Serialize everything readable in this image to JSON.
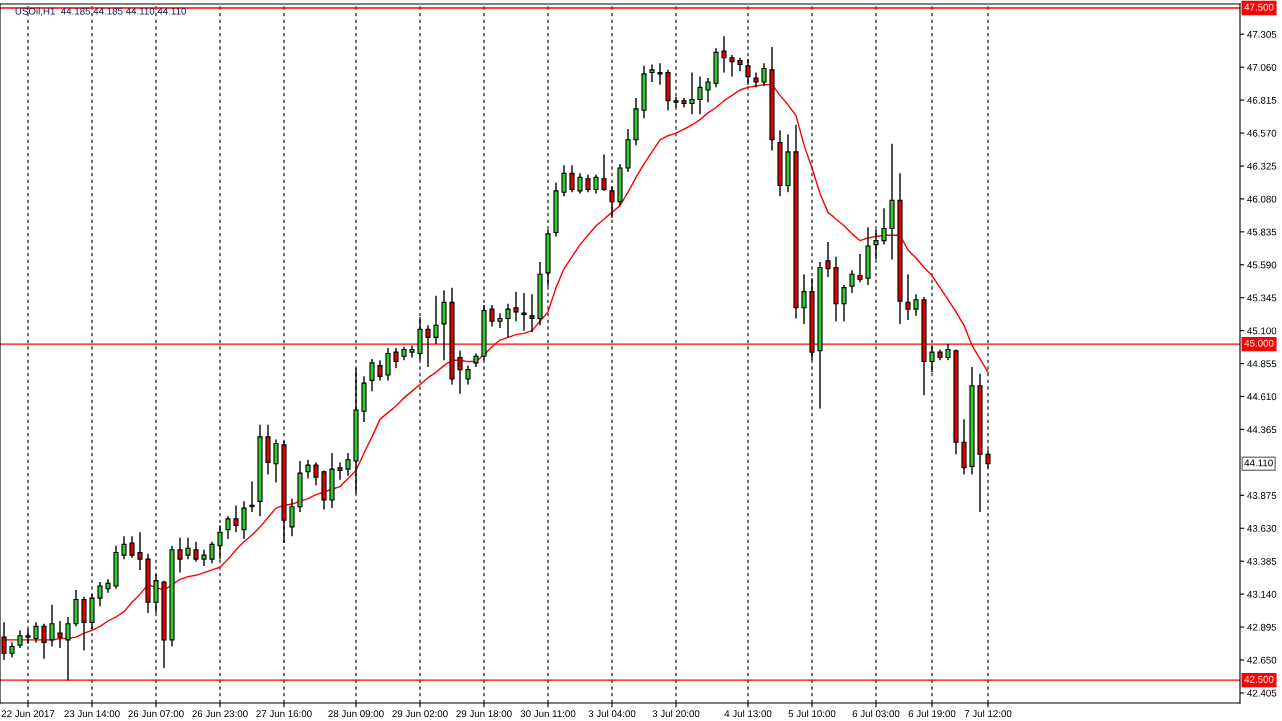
{
  "chart_data": {
    "type": "candlestick",
    "title": "USOil,H1  44.185 44.185 44.110 44.110",
    "categories": [
      null,
      null,
      null,
      "22 Jun 2017",
      null,
      null,
      null,
      null,
      null,
      null,
      null,
      "23 Jun 14:00",
      null,
      null,
      null,
      null,
      null,
      null,
      null,
      "26 Jun 07:00",
      null,
      null,
      null,
      null,
      null,
      null,
      null,
      "26 Jun 23:00",
      null,
      null,
      null,
      null,
      null,
      null,
      null,
      "27 Jun 16:00",
      null,
      null,
      null,
      null,
      null,
      null,
      null,
      null,
      "28 Jun 09:00",
      null,
      null,
      null,
      null,
      null,
      null,
      null,
      "29 Jun 02:00",
      null,
      null,
      null,
      null,
      null,
      null,
      null,
      "29 Jun 18:00",
      null,
      null,
      null,
      null,
      null,
      null,
      null,
      "30 Jun 11:00",
      null,
      null,
      null,
      null,
      null,
      null,
      null,
      "3 Jul 04:00",
      null,
      null,
      null,
      null,
      null,
      null,
      null,
      "3 Jul 20:00",
      null,
      null,
      null,
      null,
      null,
      null,
      null,
      null,
      "4 Jul 13:00",
      null,
      null,
      null,
      null,
      null,
      null,
      null,
      "5 Jul 10:00",
      null,
      null,
      null,
      null,
      null,
      null,
      null,
      "6 Jul 03:00",
      null,
      null,
      null,
      null,
      null,
      null,
      "6 Jul 19:00",
      null,
      null,
      null,
      null,
      null,
      null,
      "7 Jul 12:00"
    ],
    "ohlc": [
      [
        42.82,
        42.93,
        42.65,
        42.7
      ],
      [
        42.7,
        42.78,
        42.67,
        42.75
      ],
      [
        42.76,
        42.87,
        42.74,
        42.83
      ],
      [
        42.83,
        42.88,
        42.77,
        42.82
      ],
      [
        42.81,
        42.93,
        42.78,
        42.9
      ],
      [
        42.9,
        42.92,
        42.66,
        42.78
      ],
      [
        42.8,
        43.06,
        42.75,
        42.92
      ],
      [
        42.85,
        42.94,
        42.74,
        42.82
      ],
      [
        42.8,
        42.97,
        42.5,
        42.92
      ],
      [
        42.92,
        43.17,
        42.9,
        43.1
      ],
      [
        43.1,
        43.12,
        42.72,
        42.93
      ],
      [
        42.93,
        43.14,
        42.88,
        43.11
      ],
      [
        43.11,
        43.23,
        43.05,
        43.2
      ],
      [
        43.18,
        43.25,
        43.15,
        43.22
      ],
      [
        43.2,
        43.5,
        43.18,
        43.45
      ],
      [
        43.43,
        43.57,
        43.4,
        43.51
      ],
      [
        43.52,
        43.57,
        43.41,
        43.43
      ],
      [
        43.45,
        43.6,
        43.32,
        43.4
      ],
      [
        43.4,
        43.44,
        43.0,
        43.08
      ],
      [
        43.08,
        43.29,
        43.0,
        43.24
      ],
      [
        43.23,
        43.24,
        42.59,
        42.8
      ],
      [
        42.8,
        43.5,
        42.75,
        43.47
      ],
      [
        43.47,
        43.56,
        43.3,
        43.4
      ],
      [
        43.43,
        43.56,
        43.4,
        43.48
      ],
      [
        43.47,
        43.53,
        43.38,
        43.4
      ],
      [
        43.4,
        43.47,
        43.35,
        43.43
      ],
      [
        43.4,
        43.53,
        43.37,
        43.51
      ],
      [
        43.5,
        43.65,
        43.4,
        43.6
      ],
      [
        43.62,
        43.72,
        43.55,
        43.7
      ],
      [
        43.7,
        43.8,
        43.6,
        43.65
      ],
      [
        43.62,
        43.83,
        43.55,
        43.78
      ],
      [
        43.79,
        43.98,
        43.75,
        43.8
      ],
      [
        43.83,
        44.4,
        43.72,
        44.31
      ],
      [
        44.31,
        44.4,
        44.03,
        44.12
      ],
      [
        44.11,
        44.29,
        43.97,
        44.26
      ],
      [
        44.25,
        44.28,
        43.52,
        43.69
      ],
      [
        43.64,
        43.85,
        43.57,
        43.79
      ],
      [
        43.79,
        44.13,
        43.75,
        44.04
      ],
      [
        44.05,
        44.14,
        44.0,
        44.1
      ],
      [
        44.1,
        44.12,
        43.95,
        44.01
      ],
      [
        44.05,
        44.06,
        43.77,
        43.84
      ],
      [
        43.84,
        44.19,
        43.78,
        44.07
      ],
      [
        44.08,
        44.12,
        43.99,
        44.06
      ],
      [
        44.07,
        44.19,
        44.02,
        44.14
      ],
      [
        44.13,
        44.82,
        43.89,
        44.51
      ],
      [
        44.5,
        44.76,
        44.42,
        44.71
      ],
      [
        44.73,
        44.89,
        44.65,
        44.86
      ],
      [
        44.84,
        44.88,
        44.73,
        44.76
      ],
      [
        44.77,
        44.97,
        44.73,
        44.93
      ],
      [
        44.94,
        44.97,
        44.82,
        44.87
      ],
      [
        44.91,
        44.98,
        44.88,
        44.96
      ],
      [
        44.94,
        44.99,
        44.9,
        44.96
      ],
      [
        44.93,
        45.2,
        44.88,
        45.11
      ],
      [
        45.11,
        45.14,
        44.83,
        45.05
      ],
      [
        45.05,
        45.36,
        45.0,
        45.14
      ],
      [
        45.15,
        45.4,
        44.88,
        45.31
      ],
      [
        45.31,
        45.42,
        44.7,
        44.74
      ],
      [
        44.9,
        44.95,
        44.63,
        44.81
      ],
      [
        44.74,
        44.84,
        44.7,
        44.81
      ],
      [
        44.86,
        44.93,
        44.83,
        44.91
      ],
      [
        44.91,
        45.29,
        44.88,
        45.25
      ],
      [
        45.26,
        45.29,
        45.13,
        45.17
      ],
      [
        45.17,
        45.23,
        45.12,
        45.19
      ],
      [
        45.19,
        45.3,
        45.05,
        45.26
      ],
      [
        45.27,
        45.39,
        45.17,
        45.24
      ],
      [
        45.23,
        45.38,
        45.1,
        45.22
      ],
      [
        45.21,
        45.37,
        45.09,
        45.19
      ],
      [
        45.19,
        45.61,
        45.14,
        45.52
      ],
      [
        45.53,
        45.85,
        45.43,
        45.82
      ],
      [
        45.83,
        46.2,
        45.8,
        46.14
      ],
      [
        46.13,
        46.33,
        46.1,
        46.27
      ],
      [
        46.27,
        46.33,
        46.13,
        46.15
      ],
      [
        46.14,
        46.27,
        46.12,
        46.24
      ],
      [
        46.23,
        46.26,
        46.13,
        46.15
      ],
      [
        46.15,
        46.26,
        46.12,
        46.24
      ],
      [
        46.23,
        46.41,
        46.14,
        46.15
      ],
      [
        46.14,
        46.17,
        45.94,
        46.06
      ],
      [
        46.06,
        46.34,
        46.03,
        46.31
      ],
      [
        46.31,
        46.6,
        46.28,
        46.52
      ],
      [
        46.52,
        46.83,
        46.48,
        46.75
      ],
      [
        46.74,
        47.07,
        46.68,
        47.01
      ],
      [
        47.02,
        47.08,
        46.95,
        47.04
      ],
      [
        47.02,
        47.09,
        46.93,
        47.01
      ],
      [
        47.02,
        47.04,
        46.74,
        46.81
      ],
      [
        46.8,
        46.84,
        46.76,
        46.81
      ],
      [
        46.81,
        46.83,
        46.76,
        46.79
      ],
      [
        46.79,
        47.02,
        46.71,
        46.82
      ],
      [
        46.82,
        46.99,
        46.71,
        46.91
      ],
      [
        46.89,
        46.98,
        46.8,
        46.95
      ],
      [
        46.94,
        47.2,
        46.91,
        47.17
      ],
      [
        47.18,
        47.29,
        47.02,
        47.13
      ],
      [
        47.13,
        47.15,
        46.99,
        47.1
      ],
      [
        47.11,
        47.13,
        47.03,
        47.08
      ],
      [
        47.07,
        47.12,
        46.93,
        46.99
      ],
      [
        46.98,
        47.02,
        46.91,
        46.95
      ],
      [
        46.95,
        47.09,
        46.92,
        47.05
      ],
      [
        47.04,
        47.21,
        46.44,
        46.52
      ],
      [
        46.5,
        46.59,
        46.1,
        46.18
      ],
      [
        46.18,
        46.56,
        46.13,
        46.43
      ],
      [
        46.43,
        46.63,
        45.19,
        45.27
      ],
      [
        45.27,
        45.52,
        45.15,
        45.39
      ],
      [
        45.39,
        45.49,
        44.88,
        44.94
      ],
      [
        44.95,
        45.61,
        44.52,
        45.57
      ],
      [
        45.62,
        45.76,
        45.5,
        45.56
      ],
      [
        45.57,
        45.65,
        45.17,
        45.3
      ],
      [
        45.3,
        45.44,
        45.17,
        45.42
      ],
      [
        45.43,
        45.55,
        45.38,
        45.52
      ],
      [
        45.51,
        45.67,
        45.46,
        45.48
      ],
      [
        45.49,
        45.87,
        45.44,
        45.73
      ],
      [
        45.74,
        45.85,
        45.63,
        45.77
      ],
      [
        45.77,
        46.01,
        45.74,
        45.86
      ],
      [
        45.86,
        46.49,
        45.63,
        46.07
      ],
      [
        46.07,
        46.27,
        45.15,
        45.32
      ],
      [
        45.31,
        45.52,
        45.18,
        45.26
      ],
      [
        45.26,
        45.37,
        45.21,
        45.33
      ],
      [
        45.33,
        45.35,
        44.62,
        44.87
      ],
      [
        44.87,
        44.99,
        44.79,
        44.94
      ],
      [
        44.94,
        44.96,
        44.88,
        44.9
      ],
      [
        44.9,
        45.0,
        44.88,
        44.96
      ],
      [
        44.95,
        44.96,
        44.18,
        44.27
      ],
      [
        44.27,
        44.44,
        44.03,
        44.08
      ],
      [
        44.09,
        44.83,
        44.03,
        44.69
      ],
      [
        44.69,
        44.78,
        43.75,
        44.18
      ],
      [
        44.18,
        44.21,
        44.08,
        44.11
      ]
    ],
    "colors": [
      "#e00000",
      "#32cd32",
      "#32cd32",
      "#e00000",
      "#32cd32",
      "#e00000",
      "#32cd32",
      "#e00000",
      "#32cd32",
      "#32cd32",
      "#e00000",
      "#32cd32",
      "#32cd32",
      "#32cd32",
      "#32cd32",
      "#32cd32",
      "#e00000",
      "#e00000",
      "#e00000",
      "#32cd32",
      "#e00000",
      "#32cd32",
      "#e00000",
      "#32cd32",
      "#e00000",
      "#32cd32",
      "#32cd32",
      "#32cd32",
      "#32cd32",
      "#e00000",
      "#32cd32",
      "#32cd32",
      "#32cd32",
      "#e00000",
      "#32cd32",
      "#e00000",
      "#32cd32",
      "#32cd32",
      "#32cd32",
      "#e00000",
      "#e00000",
      "#32cd32",
      "#e00000",
      "#32cd32",
      "#32cd32",
      "#32cd32",
      "#32cd32",
      "#e00000",
      "#32cd32",
      "#e00000",
      "#32cd32",
      "#32cd32",
      "#32cd32",
      "#e00000",
      "#32cd32",
      "#32cd32",
      "#e00000",
      "#e00000",
      "#32cd32",
      "#32cd32",
      "#32cd32",
      "#e00000",
      "#32cd32",
      "#32cd32",
      "#e00000",
      "#e00000",
      "#e00000",
      "#32cd32",
      "#32cd32",
      "#32cd32",
      "#32cd32",
      "#e00000",
      "#32cd32",
      "#e00000",
      "#32cd32",
      "#e00000",
      "#e00000",
      "#32cd32",
      "#32cd32",
      "#32cd32",
      "#32cd32",
      "#32cd32",
      "#e00000",
      "#e00000",
      "#32cd32",
      "#e00000",
      "#32cd32",
      "#32cd32",
      "#32cd32",
      "#32cd32",
      "#e00000",
      "#e00000",
      "#e00000",
      "#e00000",
      "#e00000",
      "#32cd32",
      "#e00000",
      "#e00000",
      "#32cd32",
      "#e00000",
      "#32cd32",
      "#e00000",
      "#32cd32",
      "#e00000",
      "#e00000",
      "#32cd32",
      "#32cd32",
      "#e00000",
      "#32cd32",
      "#32cd32",
      "#32cd32",
      "#32cd32",
      "#e00000",
      "#e00000",
      "#32cd32",
      "#e00000",
      "#32cd32",
      "#e00000",
      "#32cd32",
      "#e00000",
      "#e00000",
      "#32cd32",
      "#e00000",
      "#e00000"
    ],
    "series": [
      {
        "type": "line",
        "color": "#ff0000",
        "values": [
          42.8,
          42.8,
          42.8,
          42.8,
          42.8,
          42.8,
          42.8,
          42.81,
          42.81,
          42.82,
          42.85,
          42.87,
          42.9,
          42.94,
          42.97,
          43.01,
          43.08,
          43.14,
          43.21,
          43.19,
          43.17,
          43.21,
          43.25,
          43.27,
          43.28,
          43.3,
          43.32,
          43.34,
          43.4,
          43.47,
          43.53,
          43.58,
          43.64,
          43.71,
          43.78,
          43.8,
          43.81,
          43.83,
          43.85,
          43.88,
          43.9,
          43.92,
          43.94,
          44.0,
          44.06,
          44.19,
          44.31,
          44.44,
          44.49,
          44.54,
          44.6,
          44.65,
          44.7,
          44.75,
          44.79,
          44.84,
          44.88,
          44.88,
          44.87,
          44.87,
          44.92,
          44.98,
          45.03,
          45.05,
          45.07,
          45.08,
          45.1,
          45.17,
          45.24,
          45.42,
          45.56,
          45.65,
          45.74,
          45.81,
          45.88,
          45.93,
          45.98,
          46.03,
          46.13,
          46.24,
          46.34,
          46.43,
          46.52,
          46.55,
          46.57,
          46.6,
          46.63,
          46.67,
          46.72,
          46.76,
          46.81,
          46.85,
          46.89,
          46.91,
          46.92,
          46.93,
          46.93,
          46.85,
          46.78,
          46.7,
          46.48,
          46.31,
          46.12,
          45.98,
          45.93,
          45.88,
          45.82,
          45.77,
          45.79,
          45.8,
          45.81,
          45.81,
          45.81,
          45.7,
          45.64,
          45.57,
          45.51,
          45.42,
          45.33,
          45.24,
          45.14,
          44.99,
          44.89,
          44.79
        ]
      }
    ],
    "ylim": [
      42.33,
      47.53
    ],
    "yticks": [
      {
        "value": 42.405,
        "label": "42.405"
      },
      {
        "value": 42.65,
        "label": "42.650"
      },
      {
        "value": 42.895,
        "label": "42.895"
      },
      {
        "value": 43.14,
        "label": "43.140"
      },
      {
        "value": 43.385,
        "label": "43.385"
      },
      {
        "value": 43.63,
        "label": "43.630"
      },
      {
        "value": 43.875,
        "label": "43.875"
      },
      {
        "value": 44.365,
        "label": "44.365"
      },
      {
        "value": 44.61,
        "label": "44.610"
      },
      {
        "value": 44.855,
        "label": "44.855"
      },
      {
        "value": 45.1,
        "label": "45.100"
      },
      {
        "value": 45.345,
        "label": "45.345"
      },
      {
        "value": 45.59,
        "label": "45.590"
      },
      {
        "value": 45.835,
        "label": "45.835"
      },
      {
        "value": 46.08,
        "label": "46.080"
      },
      {
        "value": 46.325,
        "label": "46.325"
      },
      {
        "value": 46.57,
        "label": "46.570"
      },
      {
        "value": 46.815,
        "label": "46.815"
      },
      {
        "value": 47.06,
        "label": "47.060"
      },
      {
        "value": 47.305,
        "label": "47.305"
      }
    ],
    "ref_lines": [
      {
        "axis": "y",
        "value": 47.5,
        "label": "47.500",
        "color": "#ff0000"
      },
      {
        "axis": "y",
        "value": 45.0,
        "label": "45.000",
        "color": "#ff0000"
      },
      {
        "axis": "y",
        "value": 42.5,
        "label": "42.500",
        "color": "#ff0000"
      }
    ],
    "annotations": [
      "44.110"
    ],
    "grid": "x",
    "legend": false,
    "marker": "none",
    "line_style": "solid"
  }
}
